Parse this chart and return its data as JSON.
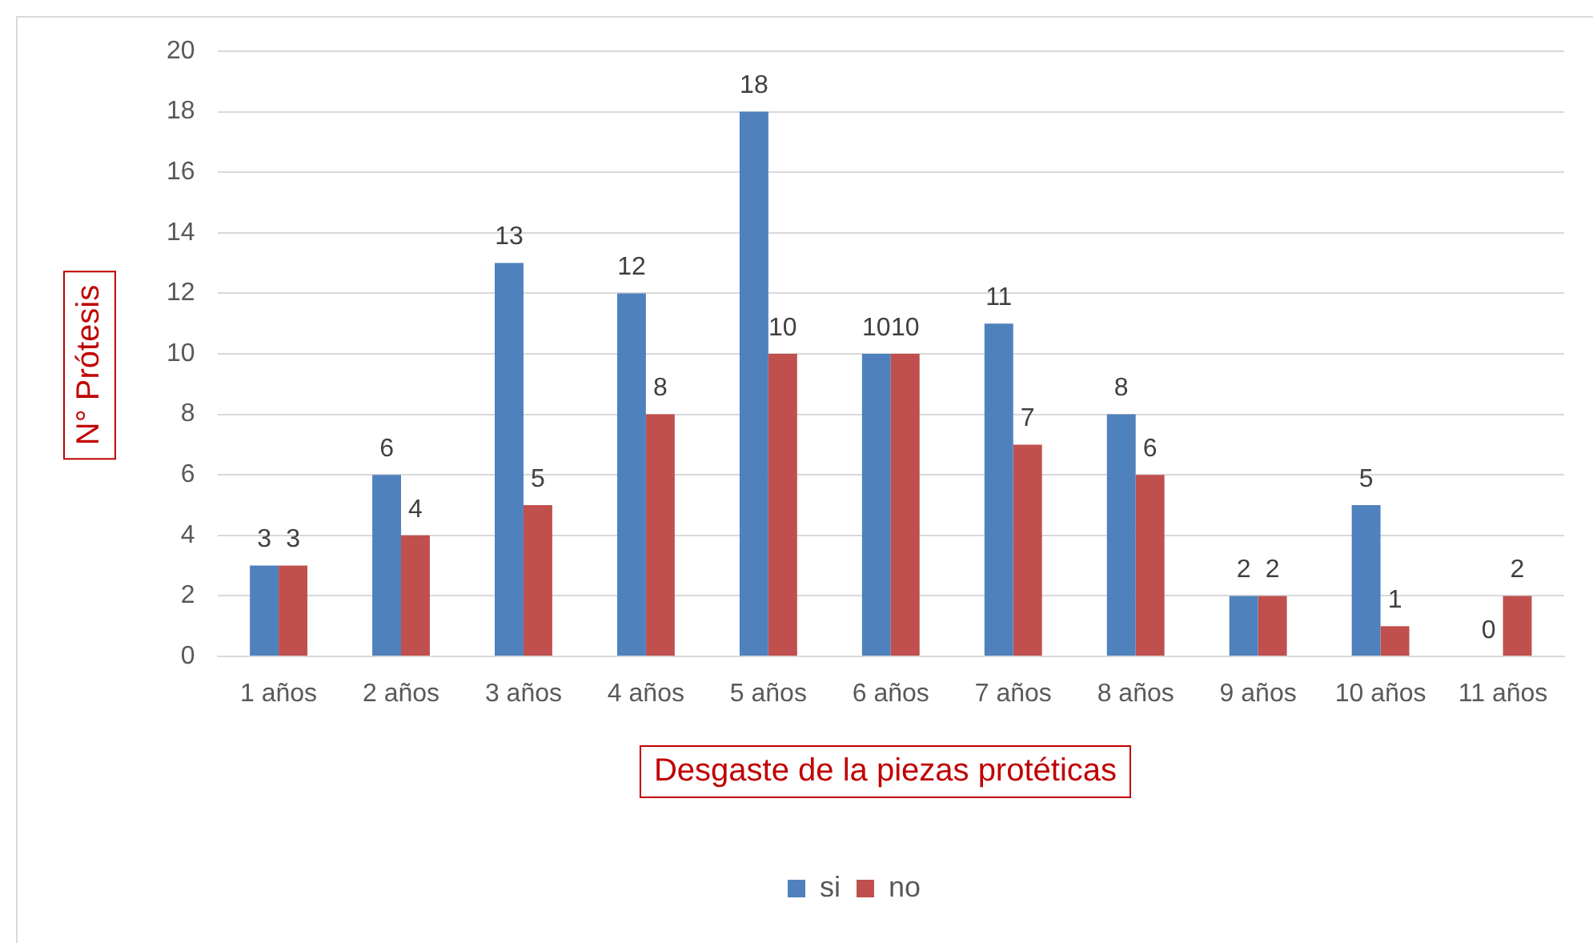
{
  "chart_data": {
    "type": "bar",
    "xlabel": "Desgaste de la piezas protéticas",
    "ylabel": "N° Prótesis",
    "categories": [
      "1 años",
      "2 años",
      "3 años",
      "4 años",
      "5 años",
      "6 años",
      "7 años",
      "8 años",
      "9 años",
      "10 años",
      "11 años"
    ],
    "series": [
      {
        "name": "si",
        "color": "#4f81bd",
        "values": [
          3,
          6,
          13,
          12,
          18,
          10,
          11,
          8,
          2,
          5,
          0
        ]
      },
      {
        "name": "no",
        "color": "#c0504d",
        "values": [
          3,
          4,
          5,
          8,
          10,
          10,
          7,
          6,
          2,
          1,
          2
        ]
      }
    ],
    "ylim": [
      0,
      20
    ],
    "yticks": [
      0,
      2,
      4,
      6,
      8,
      10,
      12,
      14,
      16,
      18,
      20
    ],
    "grid": "y",
    "legend": "bottom",
    "data_labels": true
  }
}
